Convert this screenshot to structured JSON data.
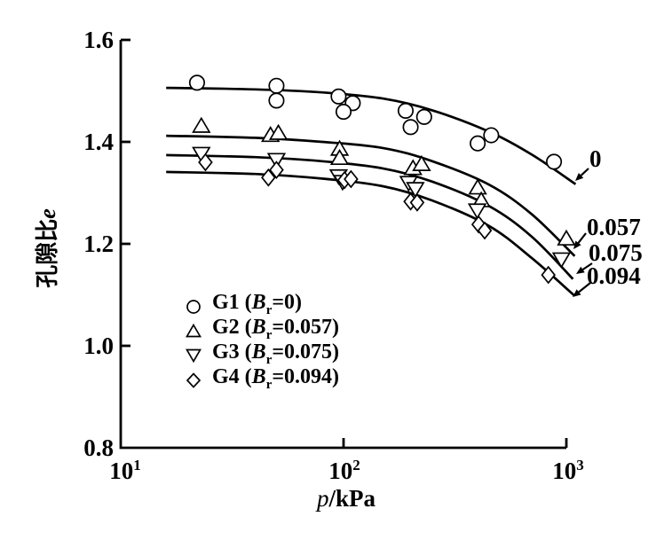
{
  "figure": {
    "background": "#ffffff",
    "ink_color": "#000000"
  },
  "axes": {
    "y_title": {
      "cjk": "孔隙比",
      "var": "e"
    },
    "x_title": {
      "var": "p",
      "rest": "/kPa"
    },
    "y_ticks": [
      {
        "value": 1.6,
        "label": "1.6"
      },
      {
        "value": 1.4,
        "label": "1.4"
      },
      {
        "value": 1.2,
        "label": "1.2"
      },
      {
        "value": 1.0,
        "label": "1.0"
      },
      {
        "value": 0.8,
        "label": "0.8"
      }
    ],
    "x_ticks": [
      {
        "value": 10,
        "base": "10",
        "exp": "1"
      },
      {
        "value": 100,
        "base": "10",
        "exp": "2"
      },
      {
        "value": 1000,
        "base": "10",
        "exp": "3"
      }
    ]
  },
  "legend": {
    "items": [
      {
        "marker": "circle",
        "prefix": "G1 (",
        "var": "B",
        "sub": "r",
        "suffix": "=0)"
      },
      {
        "marker": "triangle-up",
        "prefix": "G2 (",
        "var": "B",
        "sub": "r",
        "suffix": "=0.057)"
      },
      {
        "marker": "triangle-down",
        "prefix": "G3 (",
        "var": "B",
        "sub": "r",
        "suffix": "=0.075)"
      },
      {
        "marker": "diamond",
        "prefix": "G4 (",
        "var": "B",
        "sub": "r",
        "suffix": "=0.094)"
      }
    ]
  },
  "chart_data": {
    "type": "scatter",
    "x_scale": "log",
    "xlabel": "p/kPa",
    "ylabel": "孔隙比e",
    "xlim": [
      10,
      1000
    ],
    "ylim": [
      0.8,
      1.6
    ],
    "grid": false,
    "legend_position": "inside bottom-left",
    "series": [
      {
        "id": "g1",
        "name": "G1",
        "Br": 0,
        "marker": "circle",
        "curve_label": "0",
        "points": [
          [
            22,
            1.516
          ],
          [
            50,
            1.51
          ],
          [
            50,
            1.481
          ],
          [
            95,
            1.489
          ],
          [
            110,
            1.476
          ],
          [
            100,
            1.459
          ],
          [
            190,
            1.461
          ],
          [
            230,
            1.449
          ],
          [
            200,
            1.429
          ],
          [
            460,
            1.413
          ],
          [
            400,
            1.397
          ],
          [
            880,
            1.361
          ]
        ],
        "curve": [
          [
            16,
            1.506
          ],
          [
            40,
            1.503
          ],
          [
            80,
            1.497
          ],
          [
            150,
            1.485
          ],
          [
            250,
            1.462
          ],
          [
            450,
            1.42
          ],
          [
            700,
            1.375
          ],
          [
            1100,
            1.317
          ]
        ]
      },
      {
        "id": "g2",
        "name": "G2",
        "Br": 0.057,
        "marker": "triangle-up",
        "curve_label": "0.057",
        "points": [
          [
            23,
            1.431
          ],
          [
            47,
            1.413
          ],
          [
            51,
            1.417
          ],
          [
            96,
            1.386
          ],
          [
            96,
            1.368
          ],
          [
            205,
            1.348
          ],
          [
            224,
            1.356
          ],
          [
            400,
            1.31
          ],
          [
            415,
            1.285
          ],
          [
            1000,
            1.21
          ]
        ],
        "curve": [
          [
            16,
            1.412
          ],
          [
            40,
            1.408
          ],
          [
            80,
            1.4
          ],
          [
            150,
            1.388
          ],
          [
            250,
            1.362
          ],
          [
            450,
            1.316
          ],
          [
            700,
            1.258
          ],
          [
            1090,
            1.176
          ]
        ]
      },
      {
        "id": "g3",
        "name": "G3",
        "Br": 0.075,
        "marker": "triangle-down",
        "curve_label": "0.075",
        "points": [
          [
            23,
            1.377
          ],
          [
            50,
            1.365
          ],
          [
            95,
            1.333
          ],
          [
            99,
            1.322
          ],
          [
            196,
            1.32
          ],
          [
            210,
            1.308
          ],
          [
            398,
            1.266
          ],
          [
            950,
            1.17
          ]
        ],
        "curve": [
          [
            16,
            1.374
          ],
          [
            40,
            1.37
          ],
          [
            80,
            1.362
          ],
          [
            150,
            1.348
          ],
          [
            250,
            1.322
          ],
          [
            450,
            1.274
          ],
          [
            700,
            1.214
          ],
          [
            1070,
            1.131
          ]
        ]
      },
      {
        "id": "g4",
        "name": "G4",
        "Br": 0.094,
        "marker": "diamond",
        "curve_label": "0.094",
        "points": [
          [
            24,
            1.36
          ],
          [
            46,
            1.33
          ],
          [
            50,
            1.345
          ],
          [
            101,
            1.325
          ],
          [
            108,
            1.327
          ],
          [
            200,
            1.283
          ],
          [
            214,
            1.281
          ],
          [
            404,
            1.238
          ],
          [
            430,
            1.226
          ],
          [
            830,
            1.139
          ]
        ],
        "curve": [
          [
            16,
            1.341
          ],
          [
            40,
            1.337
          ],
          [
            80,
            1.328
          ],
          [
            150,
            1.313
          ],
          [
            250,
            1.285
          ],
          [
            450,
            1.235
          ],
          [
            700,
            1.172
          ],
          [
            1090,
            1.098
          ]
        ]
      }
    ]
  }
}
